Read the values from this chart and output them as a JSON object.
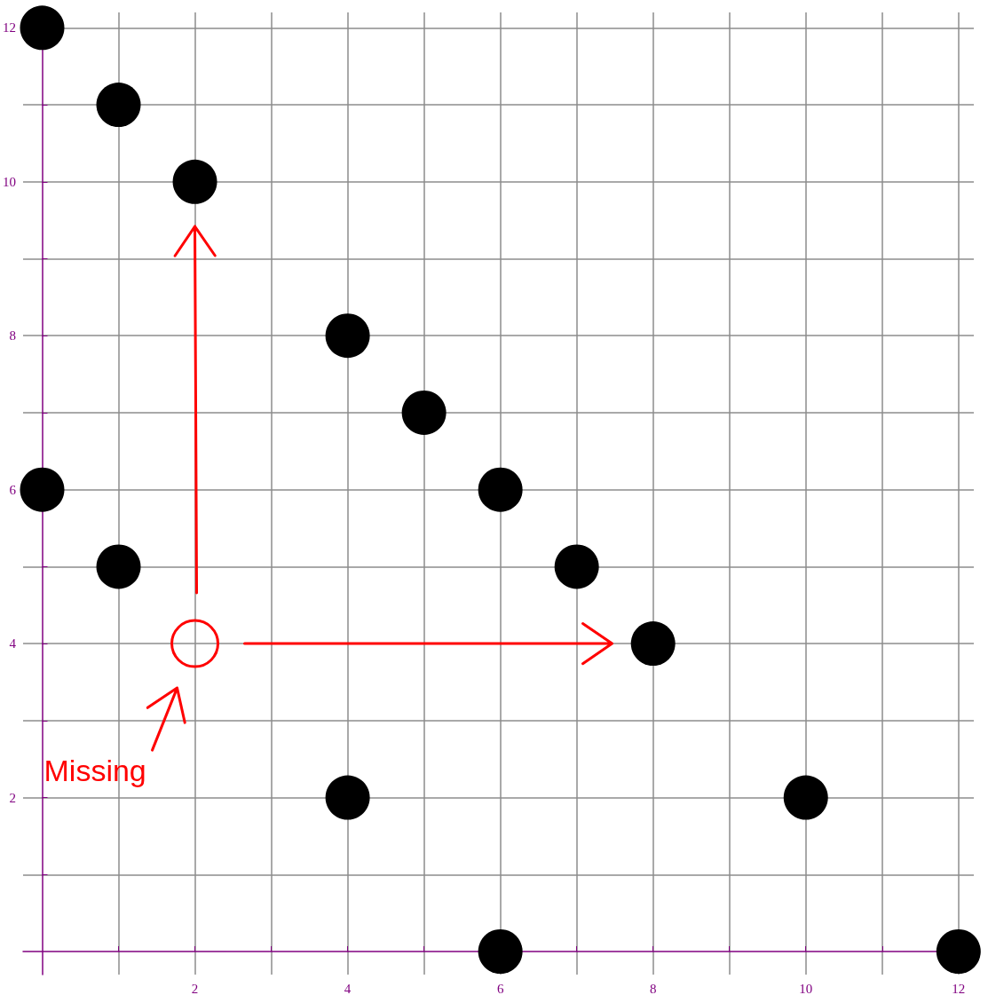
{
  "chart_data": {
    "type": "scatter",
    "x": [
      0,
      1,
      2,
      4,
      5,
      6,
      7,
      8,
      0,
      1,
      4,
      10,
      6,
      12
    ],
    "values": [
      12,
      11,
      10,
      8,
      7,
      6,
      5,
      4,
      6,
      5,
      2,
      2,
      0,
      0
    ],
    "color": "#000000",
    "marker": "circle",
    "xlim": [
      -0.25,
      12.2
    ],
    "ylim": [
      -0.3,
      12.2
    ],
    "xticks": [
      {
        "value": 1,
        "label": null
      },
      2,
      {
        "value": 3,
        "label": null
      },
      4,
      {
        "value": 5,
        "label": null
      },
      6,
      {
        "value": 7,
        "label": null
      },
      8,
      {
        "value": 9,
        "label": null
      },
      10,
      {
        "value": 11,
        "label": null
      },
      12
    ],
    "yticks": [
      {
        "value": 1,
        "label": null
      },
      2,
      {
        "value": 3,
        "label": null
      },
      4,
      {
        "value": 5,
        "label": null
      },
      6,
      {
        "value": 7,
        "label": null
      },
      8,
      {
        "value": 9,
        "label": null
      },
      10,
      {
        "value": 11,
        "label": null
      },
      12
    ],
    "grid": true,
    "annotations": [
      "Missing"
    ]
  }
}
